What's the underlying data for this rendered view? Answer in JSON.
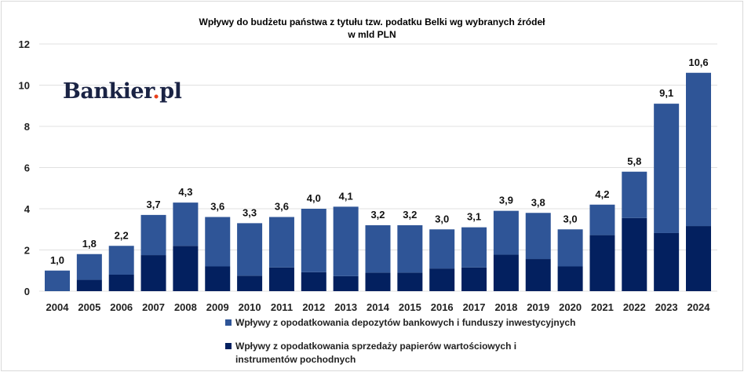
{
  "chart_data": {
    "type": "bar",
    "stacked": true,
    "title": "Wpływy do budżetu państwa z tytułu tzw. podatku Belki wg wybranych źródeł",
    "subtitle": "w mld PLN",
    "xlabel": "",
    "ylabel": "",
    "ylim": [
      0,
      12
    ],
    "yticks": [
      "0",
      "2",
      "4",
      "6",
      "8",
      "10",
      "12"
    ],
    "grid": true,
    "legend_position": "bottom",
    "categories": [
      "2004",
      "2005",
      "2006",
      "2007",
      "2008",
      "2009",
      "2010",
      "2011",
      "2012",
      "2013",
      "2014",
      "2015",
      "2016",
      "2017",
      "2018",
      "2019",
      "2020",
      "2021",
      "2022",
      "2023",
      "2024"
    ],
    "totals": [
      1.0,
      1.8,
      2.2,
      3.7,
      4.3,
      3.6,
      3.3,
      3.6,
      4.0,
      4.1,
      3.2,
      3.2,
      3.0,
      3.1,
      3.9,
      3.8,
      3.0,
      4.2,
      5.8,
      9.1,
      10.6
    ],
    "total_labels": [
      "1,0",
      "1,8",
      "2,2",
      "3,7",
      "4,3",
      "3,6",
      "3,3",
      "3,6",
      "4,0",
      "4,1",
      "3,2",
      "3,2",
      "3,0",
      "3,1",
      "3,9",
      "3,8",
      "3,0",
      "4,2",
      "5,8",
      "9,1",
      "10,6"
    ],
    "series": [
      {
        "name": "Wpływy z opodatkowania sprzedaży papierów wartościowych i instrumentów pochodnych",
        "color": "#03205f",
        "values": [
          0.0,
          0.55,
          0.8,
          1.75,
          2.2,
          1.2,
          0.75,
          1.15,
          0.92,
          0.73,
          0.9,
          0.9,
          1.1,
          1.15,
          1.77,
          1.56,
          1.2,
          2.72,
          3.55,
          2.82,
          3.16
        ]
      },
      {
        "name": "Wpływy z opodatkowania depozytów bankowych i funduszy inwestycyjnych",
        "color": "#2f5597",
        "values": [
          1.0,
          1.25,
          1.4,
          1.95,
          2.1,
          2.4,
          2.55,
          2.45,
          3.08,
          3.37,
          2.3,
          2.3,
          1.9,
          1.95,
          2.13,
          2.24,
          1.8,
          1.48,
          2.25,
          6.28,
          7.44
        ]
      }
    ]
  },
  "legend": {
    "item1": "Wpływy z opodatkowania depozytów bankowych i funduszy inwestycyjnych",
    "item2": "Wpływy z opodatkowania sprzedaży papierów wartościowych i instrumentów pochodnych"
  },
  "logo": {
    "text": "Bankier",
    "dot": ".",
    "suffix": "pl"
  }
}
